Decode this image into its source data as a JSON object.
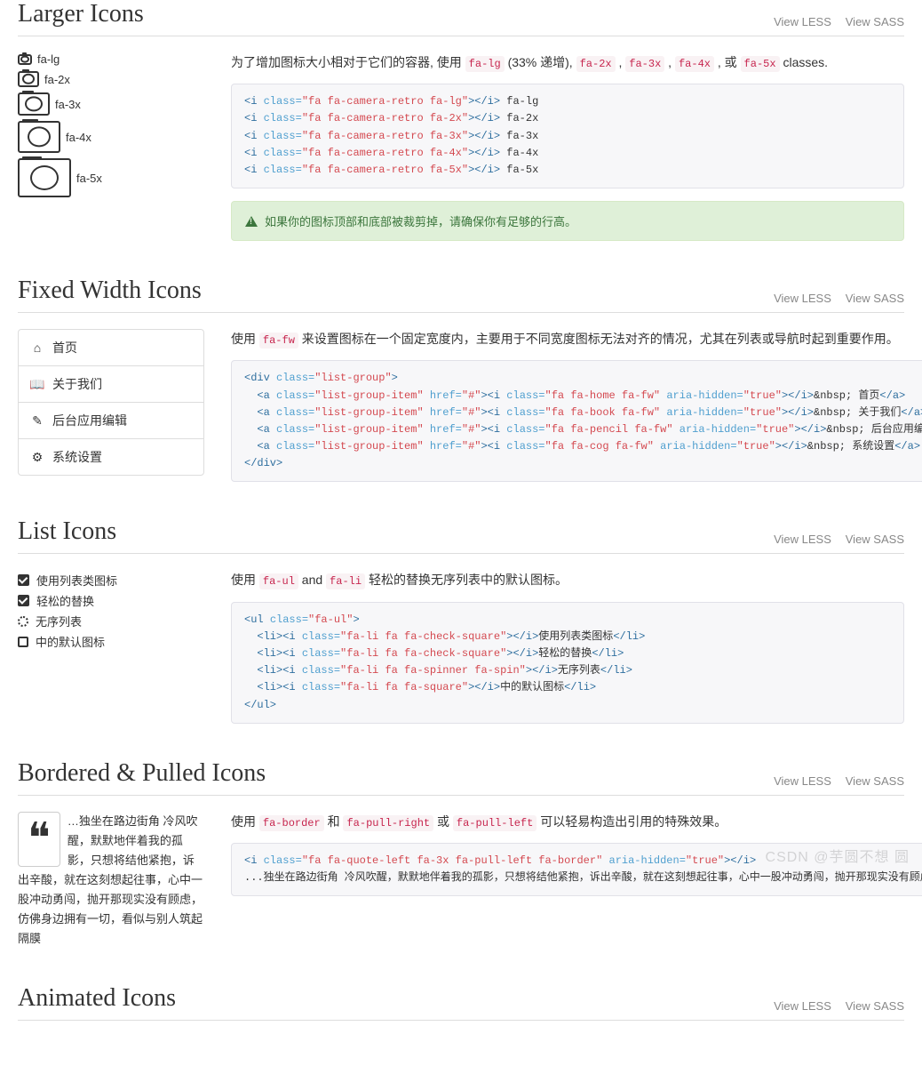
{
  "links": {
    "view_less": "View LESS",
    "view_sass": "View SASS"
  },
  "larger": {
    "title": "Larger Icons",
    "sizes": [
      {
        "cls": "cam-lg",
        "label": "fa-lg"
      },
      {
        "cls": "cam-2x",
        "label": "fa-2x"
      },
      {
        "cls": "cam-3x",
        "label": "fa-3x"
      },
      {
        "cls": "cam-4x",
        "label": "fa-4x"
      },
      {
        "cls": "cam-5x",
        "label": "fa-5x"
      }
    ],
    "desc_pre": "为了增加图标大小相对于它们的容器, 使用 ",
    "desc_mid1": " (33% 递增), ",
    "desc_sep": " , ",
    "desc_or": " , 或 ",
    "desc_post": " classes.",
    "codes": [
      "fa-lg",
      "fa-2x",
      "fa-3x",
      "fa-4x",
      "fa-5x"
    ],
    "alert": "如果你的图标顶部和底部被裁剪掉，请确保你有足够的行高。"
  },
  "fixed": {
    "title": "Fixed Width Icons",
    "nav": [
      {
        "icon": "⌂",
        "label": "首页"
      },
      {
        "icon": "📖",
        "label": "关于我们"
      },
      {
        "icon": "✎",
        "label": "后台应用编辑"
      },
      {
        "icon": "⚙",
        "label": "系统设置"
      }
    ],
    "desc_pre": "使用 ",
    "desc_code": "fa-fw",
    "desc_post": " 来设置图标在一个固定宽度内，主要用于不同宽度图标无法对齐的情况，尤其在列表或导航时起到重要作用。"
  },
  "list": {
    "title": "List Icons",
    "items": [
      {
        "type": "check",
        "label": "使用列表类图标"
      },
      {
        "type": "check",
        "label": "轻松的替换"
      },
      {
        "type": "spinner",
        "label": "无序列表"
      },
      {
        "type": "square",
        "label": "中的默认图标"
      }
    ],
    "desc_pre": "使用 ",
    "c1": "fa-ul",
    "and": " and ",
    "c2": "fa-li",
    "desc_post": " 轻松的替换无序列表中的默认图标。"
  },
  "bordered": {
    "title": "Bordered & Pulled Icons",
    "quote": "…独坐在路边街角 冷风吹醒，默默地伴着我的孤影，只想将结他紧抱，诉出辛酸，就在这刻想起往事，心中一股冲动勇闯，抛开那现实没有顾虑，仿佛身边拥有一切，看似与别人筑起隔膜",
    "desc_pre": "使用 ",
    "c1": "fa-border",
    "and": " 和 ",
    "c2": "fa-pull-right",
    "or": " 或 ",
    "c3": "fa-pull-left",
    "desc_post": " 可以轻易构造出引用的特殊效果。",
    "code_text": "...独坐在路边街角 冷风吹醒，默默地伴着我的孤影，只想将结他紧抱，诉出辛酸，就在这刻想起往事，心中一股冲动勇闯，抛开那现实没有顾虑，仿佛身边拥有一切，看似与别人筑起隔膜."
  },
  "animated": {
    "title": "Animated Icons"
  },
  "watermark": "CSDN @芋圆不想 圆"
}
